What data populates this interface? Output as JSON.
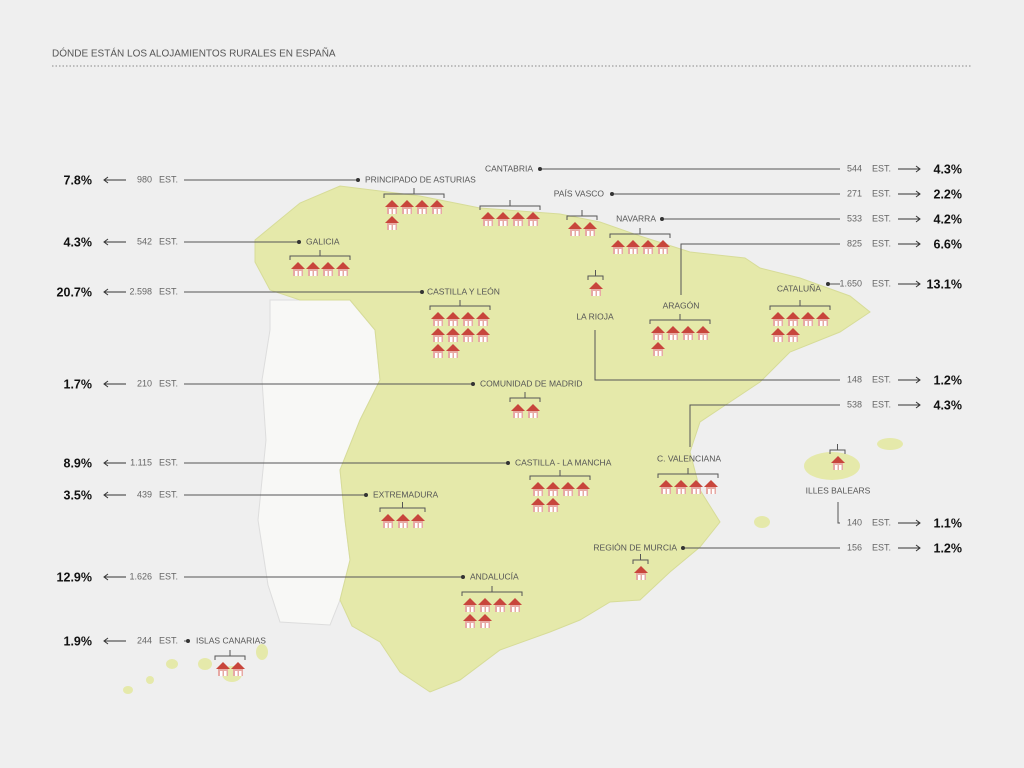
{
  "header": {
    "title": "DÓNDE ESTÁN LOS ALOJAMIENTOS RURALES EN ESPAÑA"
  },
  "unit": "EST.",
  "regions": [
    {
      "name": "PRINCIPADO DE ASTURIAS",
      "count": "980",
      "share": "7.8%",
      "houses": 5
    },
    {
      "name": "GALICIA",
      "count": "542",
      "share": "4.3%",
      "houses": 4
    },
    {
      "name": "CASTILLA Y LEÓN",
      "count": "2.598",
      "share": "20.7%",
      "houses": 10
    },
    {
      "name": "COMUNIDAD DE MADRID",
      "count": "210",
      "share": "1.7%",
      "houses": 2
    },
    {
      "name": "CASTILLA - LA MANCHA",
      "count": "1.115",
      "share": "8.9%",
      "houses": 6
    },
    {
      "name": "EXTREMADURA",
      "count": "439",
      "share": "3.5%",
      "houses": 3
    },
    {
      "name": "ANDALUCÍA",
      "count": "1.626",
      "share": "12.9%",
      "houses": 6
    },
    {
      "name": "ISLAS CANARIAS",
      "count": "244",
      "share": "1.9%",
      "houses": 2
    },
    {
      "name": "CANTABRIA",
      "count": "544",
      "share": "4.3%",
      "houses": 4
    },
    {
      "name": "PAÍS VASCO",
      "count": "271",
      "share": "2.2%",
      "houses": 2
    },
    {
      "name": "NAVARRA",
      "count": "533",
      "share": "4.2%",
      "houses": 4
    },
    {
      "name": "ARAGÓN",
      "count": "825",
      "share": "6.6%",
      "houses": 5
    },
    {
      "name": "CATALUÑA",
      "count": "1.650",
      "share": "13.1%",
      "houses": 6
    },
    {
      "name": "LA RIOJA",
      "count": "148",
      "share": "1.2%",
      "houses": 1
    },
    {
      "name": "C. VALENCIANA",
      "count": "538",
      "share": "4.3%",
      "houses": 4
    },
    {
      "name": "ILLES BALEARS",
      "count": "140",
      "share": "1.1%",
      "houses": 1
    },
    {
      "name": "REGIÓN DE MURCIA",
      "count": "156",
      "share": "1.2%",
      "houses": 1
    }
  ]
}
